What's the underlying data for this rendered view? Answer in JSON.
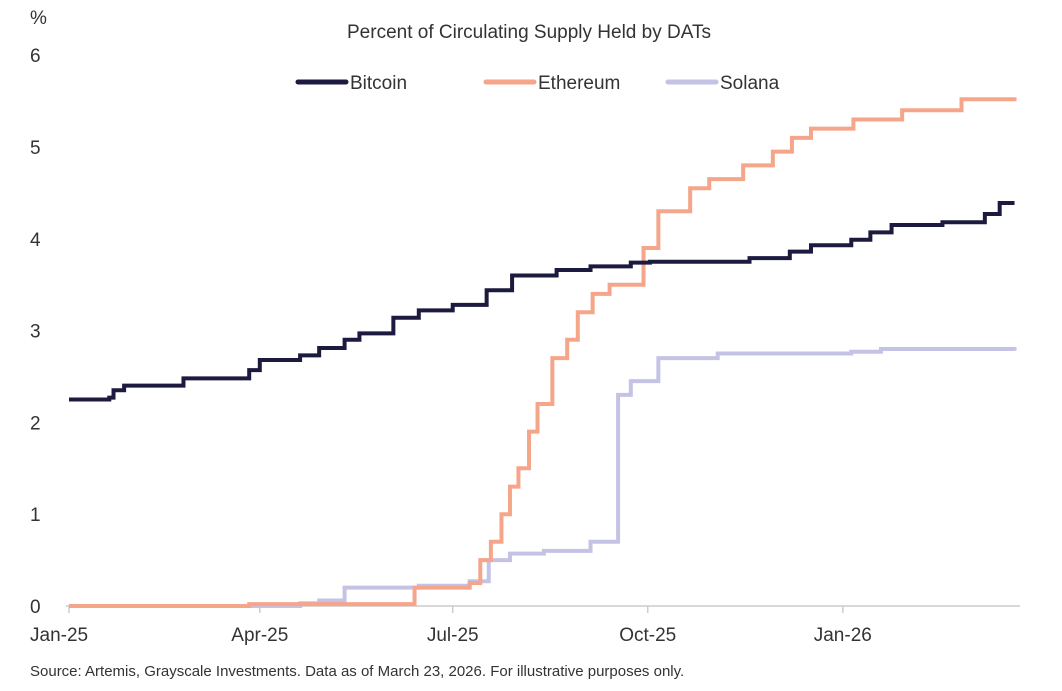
{
  "chart_data": {
    "type": "line",
    "title": "Percent of Circulating Supply Held by DATs",
    "ylabel": "%",
    "xlabel": "",
    "ylim": [
      0,
      6
    ],
    "yticks": [
      "0",
      "1",
      "2",
      "3",
      "4",
      "5",
      "6"
    ],
    "xlim": [
      "2025-01-01",
      "2026-03-23"
    ],
    "xticks": [
      {
        "label": "Jan-25",
        "date": "2025-01-01"
      },
      {
        "label": "Apr-25",
        "date": "2025-04-01"
      },
      {
        "label": "Jul-25",
        "date": "2025-07-01"
      },
      {
        "label": "Oct-25",
        "date": "2025-10-01"
      },
      {
        "label": "Jan-26",
        "date": "2026-01-01"
      }
    ],
    "grid": false,
    "legend": "top-center",
    "source": "Source: Artemis, Grayscale Investments. Data as of March 23, 2026. For illustrative purposes only.",
    "series": [
      {
        "name": "Bitcoin",
        "color": "#1c1a3e",
        "step": true,
        "points": [
          [
            "2025-01-01",
            2.25
          ],
          [
            "2025-01-20",
            2.27
          ],
          [
            "2025-01-22",
            2.35
          ],
          [
            "2025-01-27",
            2.4
          ],
          [
            "2025-02-24",
            2.48
          ],
          [
            "2025-03-27",
            2.57
          ],
          [
            "2025-04-01",
            2.68
          ],
          [
            "2025-04-20",
            2.73
          ],
          [
            "2025-04-29",
            2.81
          ],
          [
            "2025-05-11",
            2.9
          ],
          [
            "2025-05-18",
            2.97
          ],
          [
            "2025-06-03",
            3.14
          ],
          [
            "2025-06-15",
            3.22
          ],
          [
            "2025-07-01",
            3.28
          ],
          [
            "2025-07-17",
            3.44
          ],
          [
            "2025-07-29",
            3.6
          ],
          [
            "2025-08-19",
            3.66
          ],
          [
            "2025-09-04",
            3.7
          ],
          [
            "2025-09-23",
            3.74
          ],
          [
            "2025-10-02",
            3.75
          ],
          [
            "2025-11-18",
            3.79
          ],
          [
            "2025-12-07",
            3.86
          ],
          [
            "2025-12-17",
            3.93
          ],
          [
            "2026-01-05",
            3.99
          ],
          [
            "2026-01-14",
            4.07
          ],
          [
            "2026-01-24",
            4.15
          ],
          [
            "2026-02-17",
            4.18
          ],
          [
            "2026-03-09",
            4.27
          ],
          [
            "2026-03-16",
            4.39
          ],
          [
            "2026-03-23",
            4.39
          ]
        ]
      },
      {
        "name": "Ethereum",
        "color": "#f5a58a",
        "step": true,
        "points": [
          [
            "2025-01-01",
            0
          ],
          [
            "2025-03-27",
            0.02
          ],
          [
            "2025-06-13",
            0.2
          ],
          [
            "2025-07-09",
            0.25
          ],
          [
            "2025-07-14",
            0.5
          ],
          [
            "2025-07-19",
            0.7
          ],
          [
            "2025-07-24",
            1.0
          ],
          [
            "2025-07-28",
            1.3
          ],
          [
            "2025-08-01",
            1.5
          ],
          [
            "2025-08-06",
            1.9
          ],
          [
            "2025-08-10",
            2.2
          ],
          [
            "2025-08-17",
            2.7
          ],
          [
            "2025-08-24",
            2.9
          ],
          [
            "2025-08-29",
            3.2
          ],
          [
            "2025-09-05",
            3.4
          ],
          [
            "2025-09-13",
            3.5
          ],
          [
            "2025-09-29",
            3.9
          ],
          [
            "2025-10-06",
            4.3
          ],
          [
            "2025-10-21",
            4.55
          ],
          [
            "2025-10-30",
            4.65
          ],
          [
            "2025-11-15",
            4.8
          ],
          [
            "2025-11-29",
            4.95
          ],
          [
            "2025-12-08",
            5.1
          ],
          [
            "2025-12-17",
            5.2
          ],
          [
            "2026-01-06",
            5.3
          ],
          [
            "2026-01-29",
            5.4
          ],
          [
            "2026-02-26",
            5.52
          ],
          [
            "2026-03-23",
            5.5
          ]
        ]
      },
      {
        "name": "Solana",
        "color": "#c4c3e6",
        "step": true,
        "points": [
          [
            "2025-01-01",
            0
          ],
          [
            "2025-04-20",
            0.03
          ],
          [
            "2025-04-29",
            0.06
          ],
          [
            "2025-05-11",
            0.2
          ],
          [
            "2025-06-15",
            0.22
          ],
          [
            "2025-07-09",
            0.27
          ],
          [
            "2025-07-18",
            0.5
          ],
          [
            "2025-07-28",
            0.57
          ],
          [
            "2025-08-13",
            0.6
          ],
          [
            "2025-09-04",
            0.7
          ],
          [
            "2025-09-17",
            2.3
          ],
          [
            "2025-09-23",
            2.45
          ],
          [
            "2025-10-06",
            2.7
          ],
          [
            "2025-11-03",
            2.75
          ],
          [
            "2026-01-05",
            2.77
          ],
          [
            "2026-01-19",
            2.8
          ],
          [
            "2026-03-23",
            2.78
          ]
        ]
      }
    ]
  }
}
